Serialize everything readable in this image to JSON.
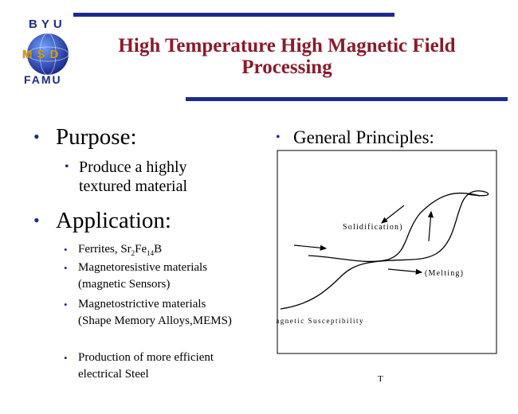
{
  "logo": {
    "top": "BYU",
    "middle": "MSD",
    "bottom": "FAMU"
  },
  "title": "High Temperature High Magnetic Field Processing",
  "left": {
    "purpose_heading": "Purpose:",
    "purpose_items": [
      "Produce a highly textured material"
    ],
    "application_heading": "Application:",
    "application_items": [
      "Ferrites, Sr2Fe14B",
      "Magnetoresistive materials (magnetic Sensors)",
      "Magnetostrictive materials (Shape Memory Alloys,MEMS)",
      "Production of more efficient electrical Steel"
    ]
  },
  "right": {
    "heading": "General Principles:",
    "diagram": {
      "label_solidification": "Solidification)",
      "label_melting": "(Melting)",
      "y_axis_label": "X Magnetic Susceptibility",
      "x_axis_label": "T"
    }
  },
  "colors": {
    "accent_bar": "#1c2b8f",
    "title": "#8b1a2b",
    "logo_gold": "#e0a000"
  }
}
